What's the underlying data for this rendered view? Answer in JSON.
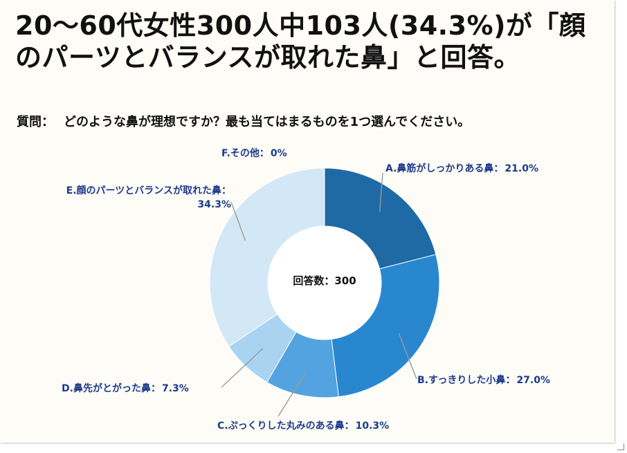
{
  "headline": "20～60代女性300人中103人(34.3%)が「顔のパーツとバランスが取れた鼻」と回答。",
  "question": {
    "label": "質問：",
    "text": "どのような鼻が理想ですか？最も当てはまるものを1つ選んでください。"
  },
  "chart_data": {
    "type": "pie",
    "donut": true,
    "center_label": "回答数：300",
    "categories": [
      "A.鼻筋がしっかりある鼻",
      "B.すっきりした小鼻",
      "C.ぷっくりした丸みのある鼻",
      "D.鼻先がとがった鼻",
      "E.顔のパーツとバランスが取れた鼻",
      "F.その他"
    ],
    "values": [
      21.0,
      27.0,
      10.3,
      7.3,
      34.3,
      0
    ],
    "value_labels": [
      "21.0%",
      "27.0%",
      "10.3%",
      "7.3%",
      "34.3%",
      "0%"
    ],
    "separator": "：",
    "colors": [
      "#1f6aa5",
      "#2987d0",
      "#52a3e0",
      "#a9d3f0",
      "#d3e8f7",
      "#e8f2fb"
    ],
    "label_color": "#1d3a8a"
  }
}
